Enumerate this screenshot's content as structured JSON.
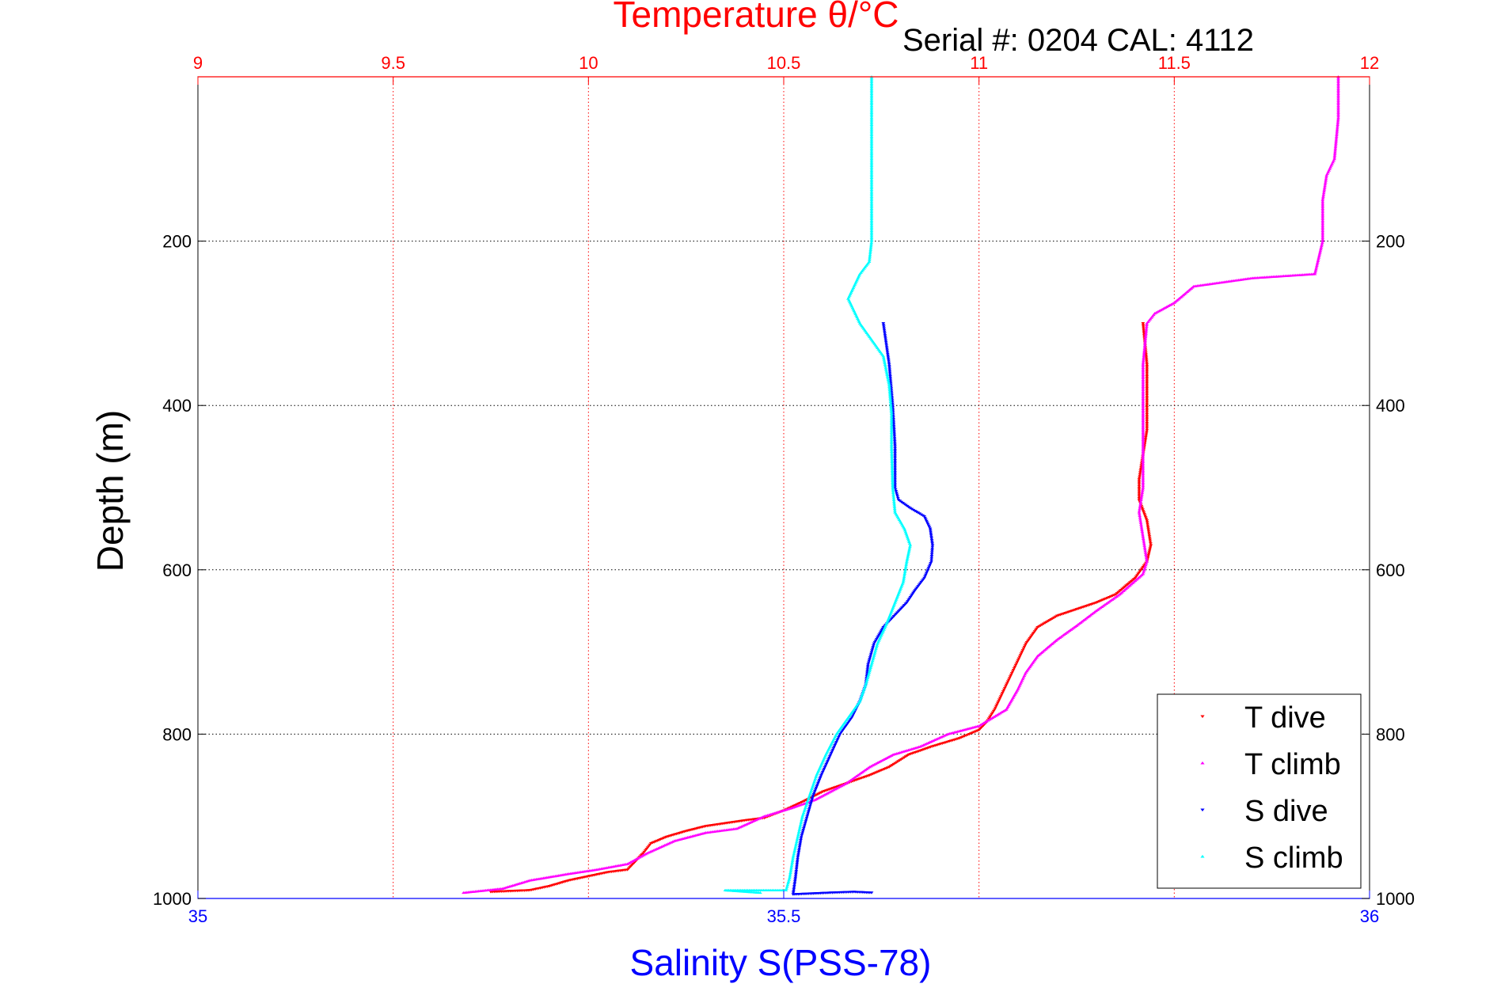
{
  "header": {
    "serial": "Serial #: 0204  CAL: 4112"
  },
  "chart_data": {
    "type": "scatter",
    "title": "Temperature θ/°C",
    "xlabel_top": "Temperature θ/°C",
    "xlabel_bottom": "Salinity S(PSS-78)",
    "ylabel": "Depth (m)",
    "ylim": [
      1000,
      0
    ],
    "x_top_lim": [
      9,
      12
    ],
    "x_bottom_lim": [
      35,
      36
    ],
    "x_top_ticks": [
      "9",
      "9.5",
      "10",
      "10.5",
      "11",
      "11.5",
      "12"
    ],
    "x_top_tick_values": [
      9,
      9.5,
      10,
      10.5,
      11,
      11.5,
      12
    ],
    "x_bottom_ticks": [
      "35",
      "35.5",
      "36"
    ],
    "x_bottom_tick_values": [
      35,
      35.5,
      36
    ],
    "y_ticks": [
      "200",
      "400",
      "600",
      "800",
      "1000"
    ],
    "y_tick_values": [
      200,
      400,
      600,
      800,
      1000
    ],
    "grid": true,
    "legend_position": "bottom-right",
    "colors": {
      "top_axis": "#ff0000",
      "bottom_axis": "#0000ff",
      "t_dive": "#ff0000",
      "t_climb": "#ff00ff",
      "s_dive": "#0000ff",
      "s_climb": "#00ffff"
    },
    "series": [
      {
        "name": "T dive",
        "axis": "top",
        "marker": "triangle-down",
        "color": "#ff0000",
        "points": [
          [
            11.42,
            300
          ],
          [
            11.43,
            350
          ],
          [
            11.43,
            400
          ],
          [
            11.43,
            430
          ],
          [
            11.42,
            460
          ],
          [
            11.41,
            490
          ],
          [
            11.41,
            515
          ],
          [
            11.43,
            540
          ],
          [
            11.44,
            570
          ],
          [
            11.43,
            590
          ],
          [
            11.4,
            610
          ],
          [
            11.35,
            630
          ],
          [
            11.3,
            640
          ],
          [
            11.25,
            648
          ],
          [
            11.2,
            656
          ],
          [
            11.15,
            670
          ],
          [
            11.12,
            690
          ],
          [
            11.1,
            710
          ],
          [
            11.08,
            730
          ],
          [
            11.06,
            750
          ],
          [
            11.04,
            770
          ],
          [
            11.02,
            785
          ],
          [
            11.0,
            795
          ],
          [
            10.95,
            805
          ],
          [
            10.88,
            815
          ],
          [
            10.82,
            825
          ],
          [
            10.77,
            840
          ],
          [
            10.72,
            850
          ],
          [
            10.66,
            860
          ],
          [
            10.6,
            870
          ],
          [
            10.55,
            882
          ],
          [
            10.5,
            893
          ],
          [
            10.45,
            902
          ],
          [
            10.4,
            905
          ],
          [
            10.3,
            912
          ],
          [
            10.25,
            918
          ],
          [
            10.2,
            925
          ],
          [
            10.16,
            933
          ],
          [
            10.14,
            945
          ],
          [
            10.12,
            955
          ],
          [
            10.1,
            965
          ],
          [
            10.05,
            968
          ],
          [
            9.95,
            978
          ],
          [
            9.9,
            985
          ],
          [
            9.85,
            990
          ],
          [
            9.75,
            992
          ]
        ]
      },
      {
        "name": "T climb",
        "axis": "top",
        "marker": "triangle-up",
        "color": "#ff00ff",
        "points": [
          [
            11.92,
            0
          ],
          [
            11.92,
            50
          ],
          [
            11.91,
            100
          ],
          [
            11.89,
            120
          ],
          [
            11.88,
            150
          ],
          [
            11.88,
            200
          ],
          [
            11.87,
            220
          ],
          [
            11.86,
            240
          ],
          [
            11.7,
            245
          ],
          [
            11.55,
            255
          ],
          [
            11.5,
            275
          ],
          [
            11.45,
            288
          ],
          [
            11.43,
            300
          ],
          [
            11.42,
            350
          ],
          [
            11.42,
            400
          ],
          [
            11.42,
            450
          ],
          [
            11.42,
            500
          ],
          [
            11.41,
            530
          ],
          [
            11.42,
            560
          ],
          [
            11.43,
            590
          ],
          [
            11.42,
            605
          ],
          [
            11.36,
            630
          ],
          [
            11.3,
            650
          ],
          [
            11.25,
            668
          ],
          [
            11.2,
            685
          ],
          [
            11.15,
            705
          ],
          [
            11.12,
            725
          ],
          [
            11.1,
            745
          ],
          [
            11.07,
            770
          ],
          [
            11.0,
            790
          ],
          [
            10.92,
            800
          ],
          [
            10.85,
            815
          ],
          [
            10.78,
            825
          ],
          [
            10.72,
            840
          ],
          [
            10.66,
            860
          ],
          [
            10.58,
            880
          ],
          [
            10.52,
            890
          ],
          [
            10.45,
            900
          ],
          [
            10.38,
            915
          ],
          [
            10.3,
            920
          ],
          [
            10.22,
            930
          ],
          [
            10.15,
            945
          ],
          [
            10.1,
            958
          ],
          [
            10.02,
            965
          ],
          [
            9.95,
            970
          ],
          [
            9.85,
            978
          ],
          [
            9.78,
            988
          ],
          [
            9.68,
            993
          ]
        ]
      },
      {
        "name": "S dive",
        "axis": "bottom",
        "marker": "triangle-down",
        "color": "#0000ff",
        "points": [
          [
            35.585,
            300
          ],
          [
            35.59,
            350
          ],
          [
            35.593,
            400
          ],
          [
            35.595,
            450
          ],
          [
            35.595,
            500
          ],
          [
            35.598,
            515
          ],
          [
            35.608,
            525
          ],
          [
            35.62,
            535
          ],
          [
            35.625,
            550
          ],
          [
            35.627,
            570
          ],
          [
            35.626,
            590
          ],
          [
            35.62,
            610
          ],
          [
            35.612,
            625
          ],
          [
            35.605,
            640
          ],
          [
            35.595,
            655
          ],
          [
            35.585,
            670
          ],
          [
            35.577,
            690
          ],
          [
            35.572,
            715
          ],
          [
            35.57,
            740
          ],
          [
            35.565,
            760
          ],
          [
            35.558,
            780
          ],
          [
            35.548,
            800
          ],
          [
            35.54,
            825
          ],
          [
            35.532,
            850
          ],
          [
            35.525,
            875
          ],
          [
            35.52,
            900
          ],
          [
            35.515,
            925
          ],
          [
            35.512,
            950
          ],
          [
            35.51,
            975
          ],
          [
            35.508,
            995
          ],
          [
            35.54,
            993
          ],
          [
            35.56,
            992
          ],
          [
            35.575,
            993
          ]
        ]
      },
      {
        "name": "S climb",
        "axis": "bottom",
        "marker": "triangle-up",
        "color": "#00ffff",
        "points": [
          [
            35.575,
            0
          ],
          [
            35.575,
            50
          ],
          [
            35.575,
            100
          ],
          [
            35.575,
            150
          ],
          [
            35.575,
            200
          ],
          [
            35.573,
            225
          ],
          [
            35.565,
            240
          ],
          [
            35.56,
            255
          ],
          [
            35.555,
            270
          ],
          [
            35.56,
            285
          ],
          [
            35.565,
            300
          ],
          [
            35.575,
            320
          ],
          [
            35.585,
            340
          ],
          [
            35.59,
            375
          ],
          [
            35.592,
            410
          ],
          [
            35.592,
            450
          ],
          [
            35.593,
            500
          ],
          [
            35.595,
            530
          ],
          [
            35.603,
            550
          ],
          [
            35.608,
            570
          ],
          [
            35.605,
            590
          ],
          [
            35.602,
            615
          ],
          [
            35.595,
            640
          ],
          [
            35.588,
            665
          ],
          [
            35.58,
            690
          ],
          [
            35.575,
            715
          ],
          [
            35.57,
            740
          ],
          [
            35.565,
            760
          ],
          [
            35.555,
            780
          ],
          [
            35.545,
            800
          ],
          [
            35.536,
            825
          ],
          [
            35.528,
            850
          ],
          [
            35.522,
            875
          ],
          [
            35.516,
            900
          ],
          [
            35.512,
            925
          ],
          [
            35.508,
            950
          ],
          [
            35.505,
            975
          ],
          [
            35.502,
            990
          ],
          [
            35.45,
            990
          ],
          [
            35.48,
            993
          ]
        ]
      }
    ]
  }
}
